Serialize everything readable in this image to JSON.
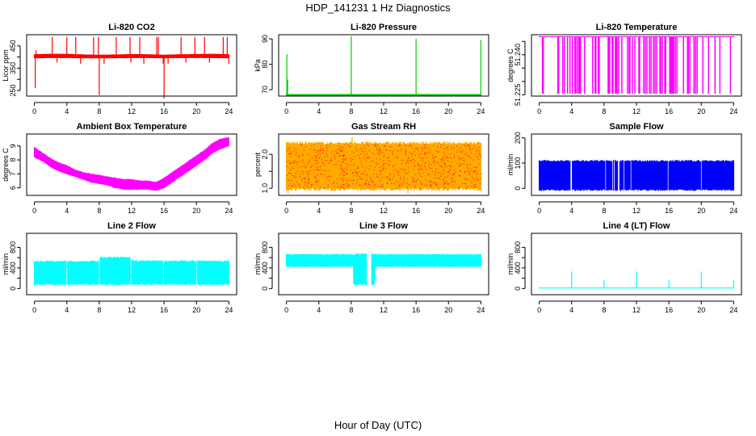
{
  "title": "HDP_141231  1 Hz Diagnostics",
  "xlabel": "Hour of Day (UTC)",
  "chart_data": [
    {
      "type": "line",
      "title": "Li-820 CO2",
      "ylabel": "Licor ppm",
      "color": "#ff0000",
      "xlim": [
        0,
        24
      ],
      "xticks": [
        0,
        4,
        8,
        12,
        16,
        20,
        24
      ],
      "ylim": [
        225,
        500
      ],
      "yticks": [
        250,
        300,
        350,
        400,
        450
      ],
      "ytick_labels": [
        "250",
        "",
        "350",
        "",
        "450"
      ],
      "x": [
        0,
        2,
        4,
        6,
        8,
        10,
        12,
        14,
        16,
        18,
        20,
        22,
        24
      ],
      "lo": [
        395,
        396,
        396,
        395,
        395,
        395,
        396,
        396,
        395,
        396,
        396,
        396,
        395
      ],
      "hi": [
        412,
        414,
        414,
        411,
        410,
        411,
        413,
        412,
        410,
        412,
        413,
        414,
        412
      ],
      "spikes": [
        [
          0.1,
          260
        ],
        [
          0.2,
          430
        ],
        [
          2.2,
          490
        ],
        [
          2.8,
          375
        ],
        [
          4.0,
          490
        ],
        [
          5.1,
          490
        ],
        [
          5.7,
          370
        ],
        [
          7.3,
          490
        ],
        [
          7.9,
          490
        ],
        [
          8.0,
          230
        ],
        [
          8.6,
          370
        ],
        [
          10.1,
          490
        ],
        [
          11.8,
          490
        ],
        [
          11.9,
          375
        ],
        [
          13.0,
          490
        ],
        [
          13.5,
          370
        ],
        [
          15.1,
          490
        ],
        [
          15.3,
          490
        ],
        [
          15.9,
          370
        ],
        [
          16.0,
          215
        ],
        [
          16.5,
          370
        ],
        [
          18.1,
          490
        ],
        [
          18.7,
          375
        ],
        [
          19.8,
          490
        ],
        [
          21.0,
          490
        ],
        [
          21.6,
          375
        ],
        [
          23.3,
          490
        ],
        [
          23.8,
          490
        ],
        [
          24.0,
          370
        ]
      ]
    },
    {
      "type": "line",
      "title": "Li-820 Pressure",
      "ylabel": "kPa",
      "color": "#00cc00",
      "xlim": [
        0,
        24
      ],
      "xticks": [
        0,
        4,
        8,
        12,
        16,
        20,
        24
      ],
      "ylim": [
        67.5,
        91.6
      ],
      "yticks": [
        70,
        80,
        90
      ],
      "ytick_labels": [
        "70",
        "80",
        "90"
      ],
      "x": [
        0,
        24
      ],
      "lo": [
        67.6,
        67.6
      ],
      "hi": [
        68.3,
        68.3
      ],
      "spikes": [
        [
          0.05,
          84
        ],
        [
          0.15,
          74
        ],
        [
          8.0,
          91
        ],
        [
          16.0,
          90
        ],
        [
          24.0,
          89.5
        ]
      ]
    },
    {
      "type": "line",
      "title": "Li-820 Temperature",
      "ylabel": "degrees C",
      "color": "#ff00ff",
      "xlim": [
        0,
        24
      ],
      "xticks": [
        0,
        4,
        8,
        12,
        16,
        20,
        24
      ],
      "ylim": [
        51.2245,
        51.2475
      ],
      "yticks": [
        51.225,
        51.23,
        51.235,
        51.24,
        51.245
      ],
      "ytick_labels": [
        "51.225",
        "",
        "",
        "51.240",
        ""
      ],
      "x": [
        0,
        24
      ],
      "lo": [
        51.2466,
        51.2466
      ],
      "hi": [
        51.2467,
        51.2467
      ],
      "drops": [
        0.4,
        0.5,
        2.3,
        2.4,
        2.9,
        3.1,
        3.5,
        3.8,
        4.1,
        4.4,
        4.5,
        4.7,
        4.9,
        5.0,
        5.1,
        5.6,
        6.6,
        6.9,
        7.0,
        7.3,
        7.4,
        8.5,
        8.6,
        8.7,
        9.0,
        9.1,
        9.4,
        9.5,
        9.6,
        9.8,
        10.2,
        10.9,
        11.1,
        11.2,
        11.5,
        11.8,
        12.3,
        12.4,
        12.9,
        13.1,
        13.3,
        13.6,
        13.8,
        14.1,
        14.3,
        14.5,
        14.9,
        15.0,
        15.2,
        15.5,
        15.6,
        16.1,
        16.2,
        16.3,
        16.4,
        16.5,
        16.6,
        16.8,
        17.0,
        17.8,
        18.3,
        18.4,
        18.6,
        19.1,
        19.3,
        19.5,
        20.2,
        20.9,
        21.7,
        22.3,
        23.6
      ]
    },
    {
      "type": "line",
      "title": "Ambient Box Temperature",
      "ylabel": "degrees C",
      "color": "#ff00ff",
      "xlim": [
        0,
        24
      ],
      "xticks": [
        0,
        4,
        8,
        12,
        16,
        20,
        24
      ],
      "ylim": [
        5.46,
        9.85
      ],
      "yticks": [
        6,
        7,
        8,
        9
      ],
      "ytick_labels": [
        "6",
        "7",
        "8",
        "9"
      ],
      "x": [
        0,
        1,
        2,
        3,
        4,
        5,
        6,
        7,
        8,
        9,
        10,
        11,
        12,
        13,
        14,
        15,
        16,
        17,
        18,
        19,
        20,
        21,
        22,
        23,
        24
      ],
      "lo": [
        8.2,
        7.9,
        7.5,
        7.2,
        7.0,
        6.8,
        6.6,
        6.4,
        6.3,
        6.2,
        6.0,
        5.9,
        5.9,
        5.9,
        5.9,
        5.8,
        6.0,
        6.4,
        6.8,
        7.2,
        7.6,
        8.0,
        8.5,
        8.8,
        9.0
      ],
      "hi": [
        8.9,
        8.5,
        8.1,
        7.8,
        7.6,
        7.3,
        7.1,
        7.0,
        6.9,
        6.8,
        6.7,
        6.6,
        6.6,
        6.5,
        6.5,
        6.4,
        6.7,
        7.1,
        7.5,
        7.9,
        8.3,
        8.7,
        9.2,
        9.5,
        9.6
      ]
    },
    {
      "type": "line",
      "title": "Gas Stream RH",
      "ylabel": "percent",
      "color": "#ffaa00",
      "color2": "#ff0000",
      "xlim": [
        0,
        24
      ],
      "xticks": [
        0,
        4,
        8,
        12,
        16,
        20,
        24
      ],
      "ylim": [
        0.79,
        2.6
      ],
      "yticks": [
        1.0,
        1.5,
        2.0
      ],
      "ytick_labels": [
        "1.0",
        "",
        "2.0"
      ],
      "x": [
        0,
        24
      ],
      "lo": [
        1.0,
        1.0
      ],
      "hi": [
        2.3,
        2.3
      ],
      "spikes": [
        [
          0.2,
          0.85
        ],
        [
          8.1,
          2.5
        ],
        [
          15.0,
          0.85
        ],
        [
          16.9,
          0.95
        ]
      ]
    },
    {
      "type": "line",
      "title": "Sample Flow",
      "ylabel": "ml/min",
      "color": "#0000ff",
      "xlim": [
        0,
        24
      ],
      "xticks": [
        0,
        4,
        8,
        12,
        16,
        20,
        24
      ],
      "ylim": [
        -28,
        215
      ],
      "yticks": [
        0,
        100,
        200
      ],
      "ytick_labels": [
        "0",
        "100",
        "200"
      ],
      "x": [
        0,
        24
      ],
      "lo": [
        -4,
        -4
      ],
      "hi": [
        106,
        106
      ],
      "gaps": [
        3.9,
        4.0,
        8.2,
        9.1,
        9.3,
        9.8,
        9.9,
        10.4,
        11.3,
        15.9,
        20.0
      ]
    },
    {
      "type": "line",
      "title": "Line 2 Flow",
      "ylabel": "ml/min",
      "color": "#00ffff",
      "xlim": [
        0,
        24
      ],
      "xticks": [
        0,
        4,
        8,
        12,
        16,
        20,
        24
      ],
      "ylim": [
        -120,
        1072
      ],
      "yticks": [
        0,
        200,
        400,
        600,
        800
      ],
      "ytick_labels": [
        "0",
        "",
        "400",
        "",
        "800"
      ],
      "x": [
        0,
        7.9,
        8.0,
        11.9,
        12.0,
        24
      ],
      "lo": [
        90,
        90,
        90,
        90,
        90,
        90
      ],
      "hi": [
        520,
        520,
        590,
        590,
        530,
        520
      ],
      "gaps": [
        4.0,
        8.0,
        11.9,
        15.9,
        20.0
      ]
    },
    {
      "type": "line",
      "title": "Line 3 Flow",
      "ylabel": "ml/min",
      "color": "#00ffff",
      "xlim": [
        0,
        24
      ],
      "xticks": [
        0,
        4,
        8,
        12,
        16,
        20,
        24
      ],
      "ylim": [
        -120,
        1072
      ],
      "yticks": [
        0,
        200,
        400,
        600,
        800
      ],
      "ytick_labels": [
        "0",
        "",
        "400",
        "",
        "800"
      ],
      "x": [
        0,
        8.2,
        8.3,
        10.9,
        11.0,
        24
      ],
      "lo": [
        430,
        430,
        90,
        90,
        430,
        430
      ],
      "hi": [
        660,
        660,
        650,
        650,
        660,
        660
      ],
      "gaps": [
        10.0,
        10.1,
        10.2,
        10.3,
        10.4
      ]
    },
    {
      "type": "line",
      "title": "Line 4 (LT) Flow",
      "ylabel": "ml/min",
      "color": "#00ffff",
      "xlim": [
        0,
        24
      ],
      "xticks": [
        0,
        4,
        8,
        12,
        16,
        20,
        24
      ],
      "ylim": [
        -120,
        1072
      ],
      "yticks": [
        0,
        200,
        400,
        600,
        800
      ],
      "ytick_labels": [
        "0",
        "",
        "400",
        "",
        "800"
      ],
      "x": [
        0,
        24
      ],
      "lo": [
        0,
        0
      ],
      "hi": [
        20,
        20
      ],
      "spikes": [
        [
          4.0,
          330
        ],
        [
          8.0,
          170
        ],
        [
          12.0,
          330
        ],
        [
          16.0,
          170
        ],
        [
          20.0,
          330
        ],
        [
          24.0,
          170
        ]
      ]
    }
  ]
}
